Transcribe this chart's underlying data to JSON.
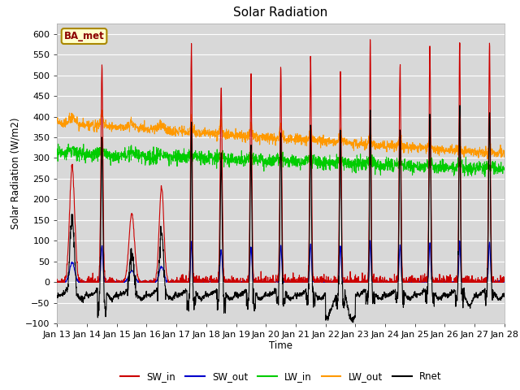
{
  "title": "Solar Radiation",
  "ylabel": "Solar Radiation (W/m2)",
  "xlabel": "Time",
  "ylim": [
    -100,
    625
  ],
  "yticks": [
    -100,
    -50,
    0,
    50,
    100,
    150,
    200,
    250,
    300,
    350,
    400,
    450,
    500,
    550,
    600
  ],
  "xtick_labels": [
    "Jan 13",
    "Jan 14",
    "Jan 15",
    "Jan 16",
    "Jan 17",
    "Jan 18",
    "Jan 19",
    "Jan 20",
    "Jan 21",
    "Jan 22",
    "Jan 23",
    "Jan 24",
    "Jan 25",
    "Jan 26",
    "Jan 27",
    "Jan 28"
  ],
  "colors": {
    "SW_in": "#cc0000",
    "SW_out": "#0000cc",
    "LW_in": "#00cc00",
    "LW_out": "#ff9900",
    "Rnet": "#000000"
  },
  "bg_color": "#d8d8d8",
  "legend_label": "BA_met",
  "legend_bg": "#ffffcc",
  "legend_border": "#aa8800"
}
